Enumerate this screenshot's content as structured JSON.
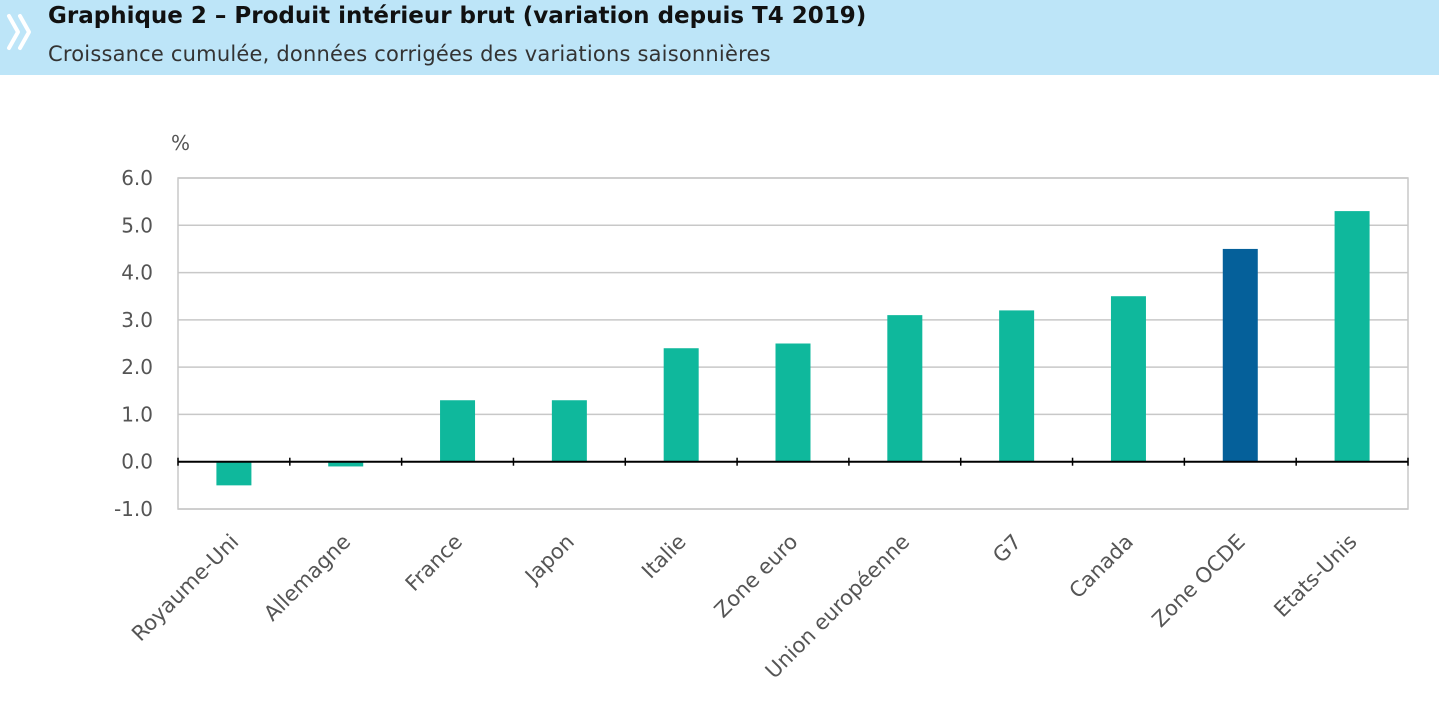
{
  "header": {
    "icon": "double-chevron-icon",
    "title": "Graphique 2 – Produit intérieur brut (variation depuis T4 2019)",
    "subtitle": "Croissance cumulée, données corrigées des variations saisonnières",
    "background_color": "#bde5f8"
  },
  "chart_data": {
    "type": "bar",
    "unit_label": "%",
    "categories": [
      "Royaume-Uni",
      "Allemagne",
      "France",
      "Japon",
      "Italie",
      "Zone euro",
      "Union européenne",
      "G7",
      "Canada",
      "Zone OCDE",
      "Etats-Unis"
    ],
    "values": [
      -0.5,
      -0.1,
      1.3,
      1.3,
      2.4,
      2.5,
      3.1,
      3.2,
      3.5,
      4.5,
      5.3
    ],
    "highlight_category": "Zone OCDE",
    "yticks": [
      "6.0",
      "5.0",
      "4.0",
      "3.0",
      "2.0",
      "1.0",
      "0.0",
      "-1.0"
    ],
    "ylim": [
      -1,
      6
    ],
    "grid": true,
    "colors": {
      "bar": "#0fb89c",
      "highlight": "#05609a",
      "grid": "#c8c8c8",
      "axis": "#000000"
    }
  }
}
